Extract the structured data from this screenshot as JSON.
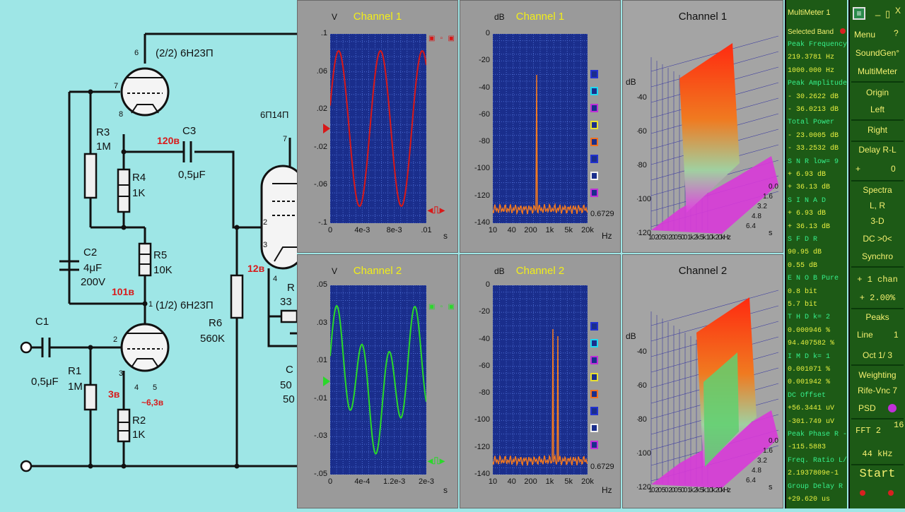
{
  "schematic": {
    "tube_top": "(2/2) 6H23П",
    "tube_bottom": "(1/2) 6H23П",
    "tube_right": "6П14П",
    "r3_name": "R3",
    "r3_val": "1M",
    "r4_name": "R4",
    "r4_val": "1K",
    "r5_name": "R5",
    "r5_val": "10K",
    "r6_name": "R6",
    "r6_val": "560K",
    "r1_name": "R1",
    "r1_val": "1M",
    "r2_name": "R2",
    "r2_val": "1K",
    "c1_name": "C1",
    "c1_val": "0,5μF",
    "c2_name": "C2",
    "c2_val1": "4μF",
    "c2_val2": "200V",
    "c3_name": "C3",
    "c3_val": "0,5μF",
    "v_120": "120в",
    "v_101": "101в",
    "v_3": "3в",
    "v_12": "12в",
    "v_63": "~6,3в",
    "r_cut": "R",
    "r_cut_val": "33",
    "c_cut": "C",
    "c_cut_v1": "50",
    "c_cut_v2": "50",
    "pins": {
      "p6": "6",
      "p7": "7",
      "p8": "8",
      "p1": "1",
      "p2": "2",
      "p3": "3",
      "p4": "4",
      "p5": "5",
      "pr7": "7",
      "pr2": "2",
      "pr3": "3",
      "pr4": "4"
    }
  },
  "scope1": {
    "title": "Channel 1",
    "unit_y": "V",
    "unit_x": "s",
    "y_ticks": [
      ".1",
      ".06",
      ".02",
      "-.02",
      "-.06",
      "-.1"
    ],
    "x_ticks": [
      "0",
      "4e-3",
      "8e-3",
      ".01"
    ],
    "trace_color": "#d81818"
  },
  "scope2": {
    "title": "Channel 2",
    "unit_y": "V",
    "unit_x": "s",
    "y_ticks": [
      ".05",
      ".03",
      ".01",
      "-.01",
      "-.03",
      "-.05"
    ],
    "x_ticks": [
      "0",
      "4e-4",
      "1.2e-3",
      "2e-3"
    ],
    "trace_color": "#2ad82a"
  },
  "spec1": {
    "title": "Channel 1",
    "unit_y": "dB",
    "unit_x": "Hz",
    "y_ticks": [
      "0",
      "-20",
      "-40",
      "-60",
      "-80",
      "-100",
      "-120",
      "-140"
    ],
    "x_ticks": [
      "10",
      "40",
      "200",
      "1k",
      "5k",
      "20k"
    ],
    "readout": "0.6729"
  },
  "spec2": {
    "title": "Channel 2",
    "unit_y": "dB",
    "unit_x": "Hz",
    "y_ticks": [
      "0",
      "-20",
      "-40",
      "-60",
      "-80",
      "-100",
      "-120",
      "-140"
    ],
    "x_ticks": [
      "10",
      "40",
      "200",
      "1k",
      "5k",
      "20k"
    ],
    "readout": "0.6729"
  },
  "swatches": [
    "#2232d0",
    "#22d8f0",
    "#c030d8",
    "#e8e030",
    "#f07020",
    "#2232d0",
    "#f0f0f0",
    "#c030d8"
  ],
  "spec3d1": {
    "title": "Channel 1",
    "unit_y": "dB",
    "unit_x": "Hz",
    "unit_z": "s",
    "y_ticks": [
      "-40",
      "-60",
      "-80",
      "-100",
      "-120"
    ],
    "x_ticks": "10 20 50 200 500 1k 2k 5k 10k 20kHz",
    "z_ticks": [
      "0.0",
      "1.6",
      "3.2",
      "4.8",
      "6.4"
    ]
  },
  "spec3d2": {
    "title": "Channel 2",
    "unit_y": "dB",
    "unit_x": "Hz",
    "unit_z": "s",
    "y_ticks": [
      "-40",
      "-60",
      "-80",
      "-100",
      "-120"
    ],
    "x_ticks": "10 20 50 200 500 1k 2k 5k 10k 20kHz",
    "z_ticks": [
      "0.0",
      "1.6",
      "3.2",
      "4.8",
      "6.4"
    ]
  },
  "meter": {
    "title": "MultiMeter 1",
    "selected_band": "Selected Band",
    "rows": [
      {
        "l": "Peak Frequency",
        "v": ""
      },
      {
        "l": "",
        "v": " 219.3781  Hz"
      },
      {
        "l": "",
        "v": "1000.000  Hz"
      },
      {
        "l": "Peak Amplitude",
        "v": ""
      },
      {
        "l": "",
        "v": "- 30.2622 dB"
      },
      {
        "l": "",
        "v": "- 36.0213 dB"
      },
      {
        "l": "Total Power",
        "v": ""
      },
      {
        "l": "",
        "v": "- 23.0005 dB"
      },
      {
        "l": "",
        "v": "- 33.2532 dB"
      },
      {
        "l": "S N R  low= 9",
        "v": ""
      },
      {
        "l": "",
        "v": " +  6.93 dB"
      },
      {
        "l": "",
        "v": " + 36.13 dB"
      },
      {
        "l": "S I N A D",
        "v": ""
      },
      {
        "l": "",
        "v": " +  6.93 dB"
      },
      {
        "l": "",
        "v": " + 36.13 dB"
      },
      {
        "l": "S F D R",
        "v": ""
      },
      {
        "l": "",
        "v": "   90.95 dB"
      },
      {
        "l": "",
        "v": "    0.55 dB"
      },
      {
        "l": "E N O B  Pure",
        "v": ""
      },
      {
        "l": "",
        "v": "    0.8 bit"
      },
      {
        "l": "",
        "v": "    5.7 bit"
      },
      {
        "l": "T H D  k= 2",
        "v": ""
      },
      {
        "l": "",
        "v": "  0.000946 %"
      },
      {
        "l": "",
        "v": " 94.407582 %"
      },
      {
        "l": "I M D  k= 1",
        "v": ""
      },
      {
        "l": "",
        "v": "  0.001071 %"
      },
      {
        "l": "",
        "v": "  0.001942 %"
      },
      {
        "l": "DC Offset",
        "v": ""
      },
      {
        "l": "",
        "v": "+56.3441 uV"
      },
      {
        "l": "",
        "v": "-301.749 uV"
      },
      {
        "l": "Peak Phase R - L",
        "v": ""
      },
      {
        "l": "",
        "v": " -115.5883"
      },
      {
        "l": "Freq. Ratio L/R",
        "v": ""
      },
      {
        "l": "",
        "v": " 2.1937809e-1"
      },
      {
        "l": "Group Delay R - L",
        "v": ""
      },
      {
        "l": "",
        "v": " +29.620 us"
      }
    ]
  },
  "menu": {
    "logo": "≡",
    "min": "_",
    "restore": "▯",
    "close": "X",
    "menu": "Menu",
    "help": "?",
    "soundgen": "SoundGen°",
    "multimeter": "MultiMeter",
    "origin": "Origin",
    "left": "Left",
    "right": "Right",
    "delay": "Delay R-L",
    "plus": "+",
    "zero": "0",
    "spectra": "Spectra",
    "lr": "L, R",
    "threed": "3-D",
    "dc": "DC  >0<",
    "synchro": "Synchro",
    "chan": "+ 1 chan",
    "pct": "+ 2.00%",
    "peaks": "Peaks",
    "line": "Line",
    "one": "1",
    "oct": "Oct  1/  3",
    "weighting": "Weighting",
    "rife": "Rife-Vnc 7",
    "psd": "PSD",
    "fft": "FFT 2",
    "sixteen": "16",
    "rate": "44  kHz",
    "start": "Start"
  }
}
